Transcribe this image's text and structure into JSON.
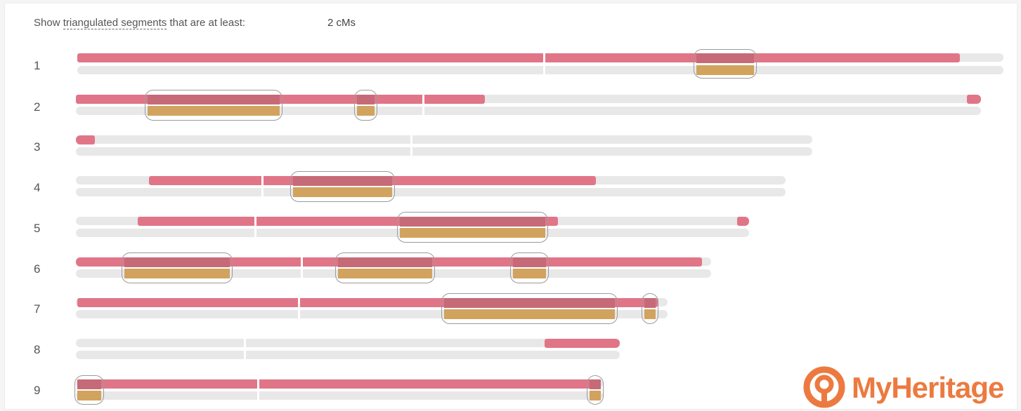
{
  "header": {
    "prefix": "Show ",
    "link": "triangulated segments",
    "suffix": " that are at least:",
    "value": "2 cMs"
  },
  "colors": {
    "shared_segment": "#e17588",
    "triangulated_segment": "#d1a35e",
    "chromosome_track": "#e8e8e8",
    "brand": "#ec7a40"
  },
  "chromosomes": [
    "1",
    "2",
    "3",
    "4",
    "5",
    "6",
    "7",
    "8",
    "9"
  ],
  "branding": {
    "name": "MyHeritage",
    "icon": "myheritage-logo-icon"
  }
}
